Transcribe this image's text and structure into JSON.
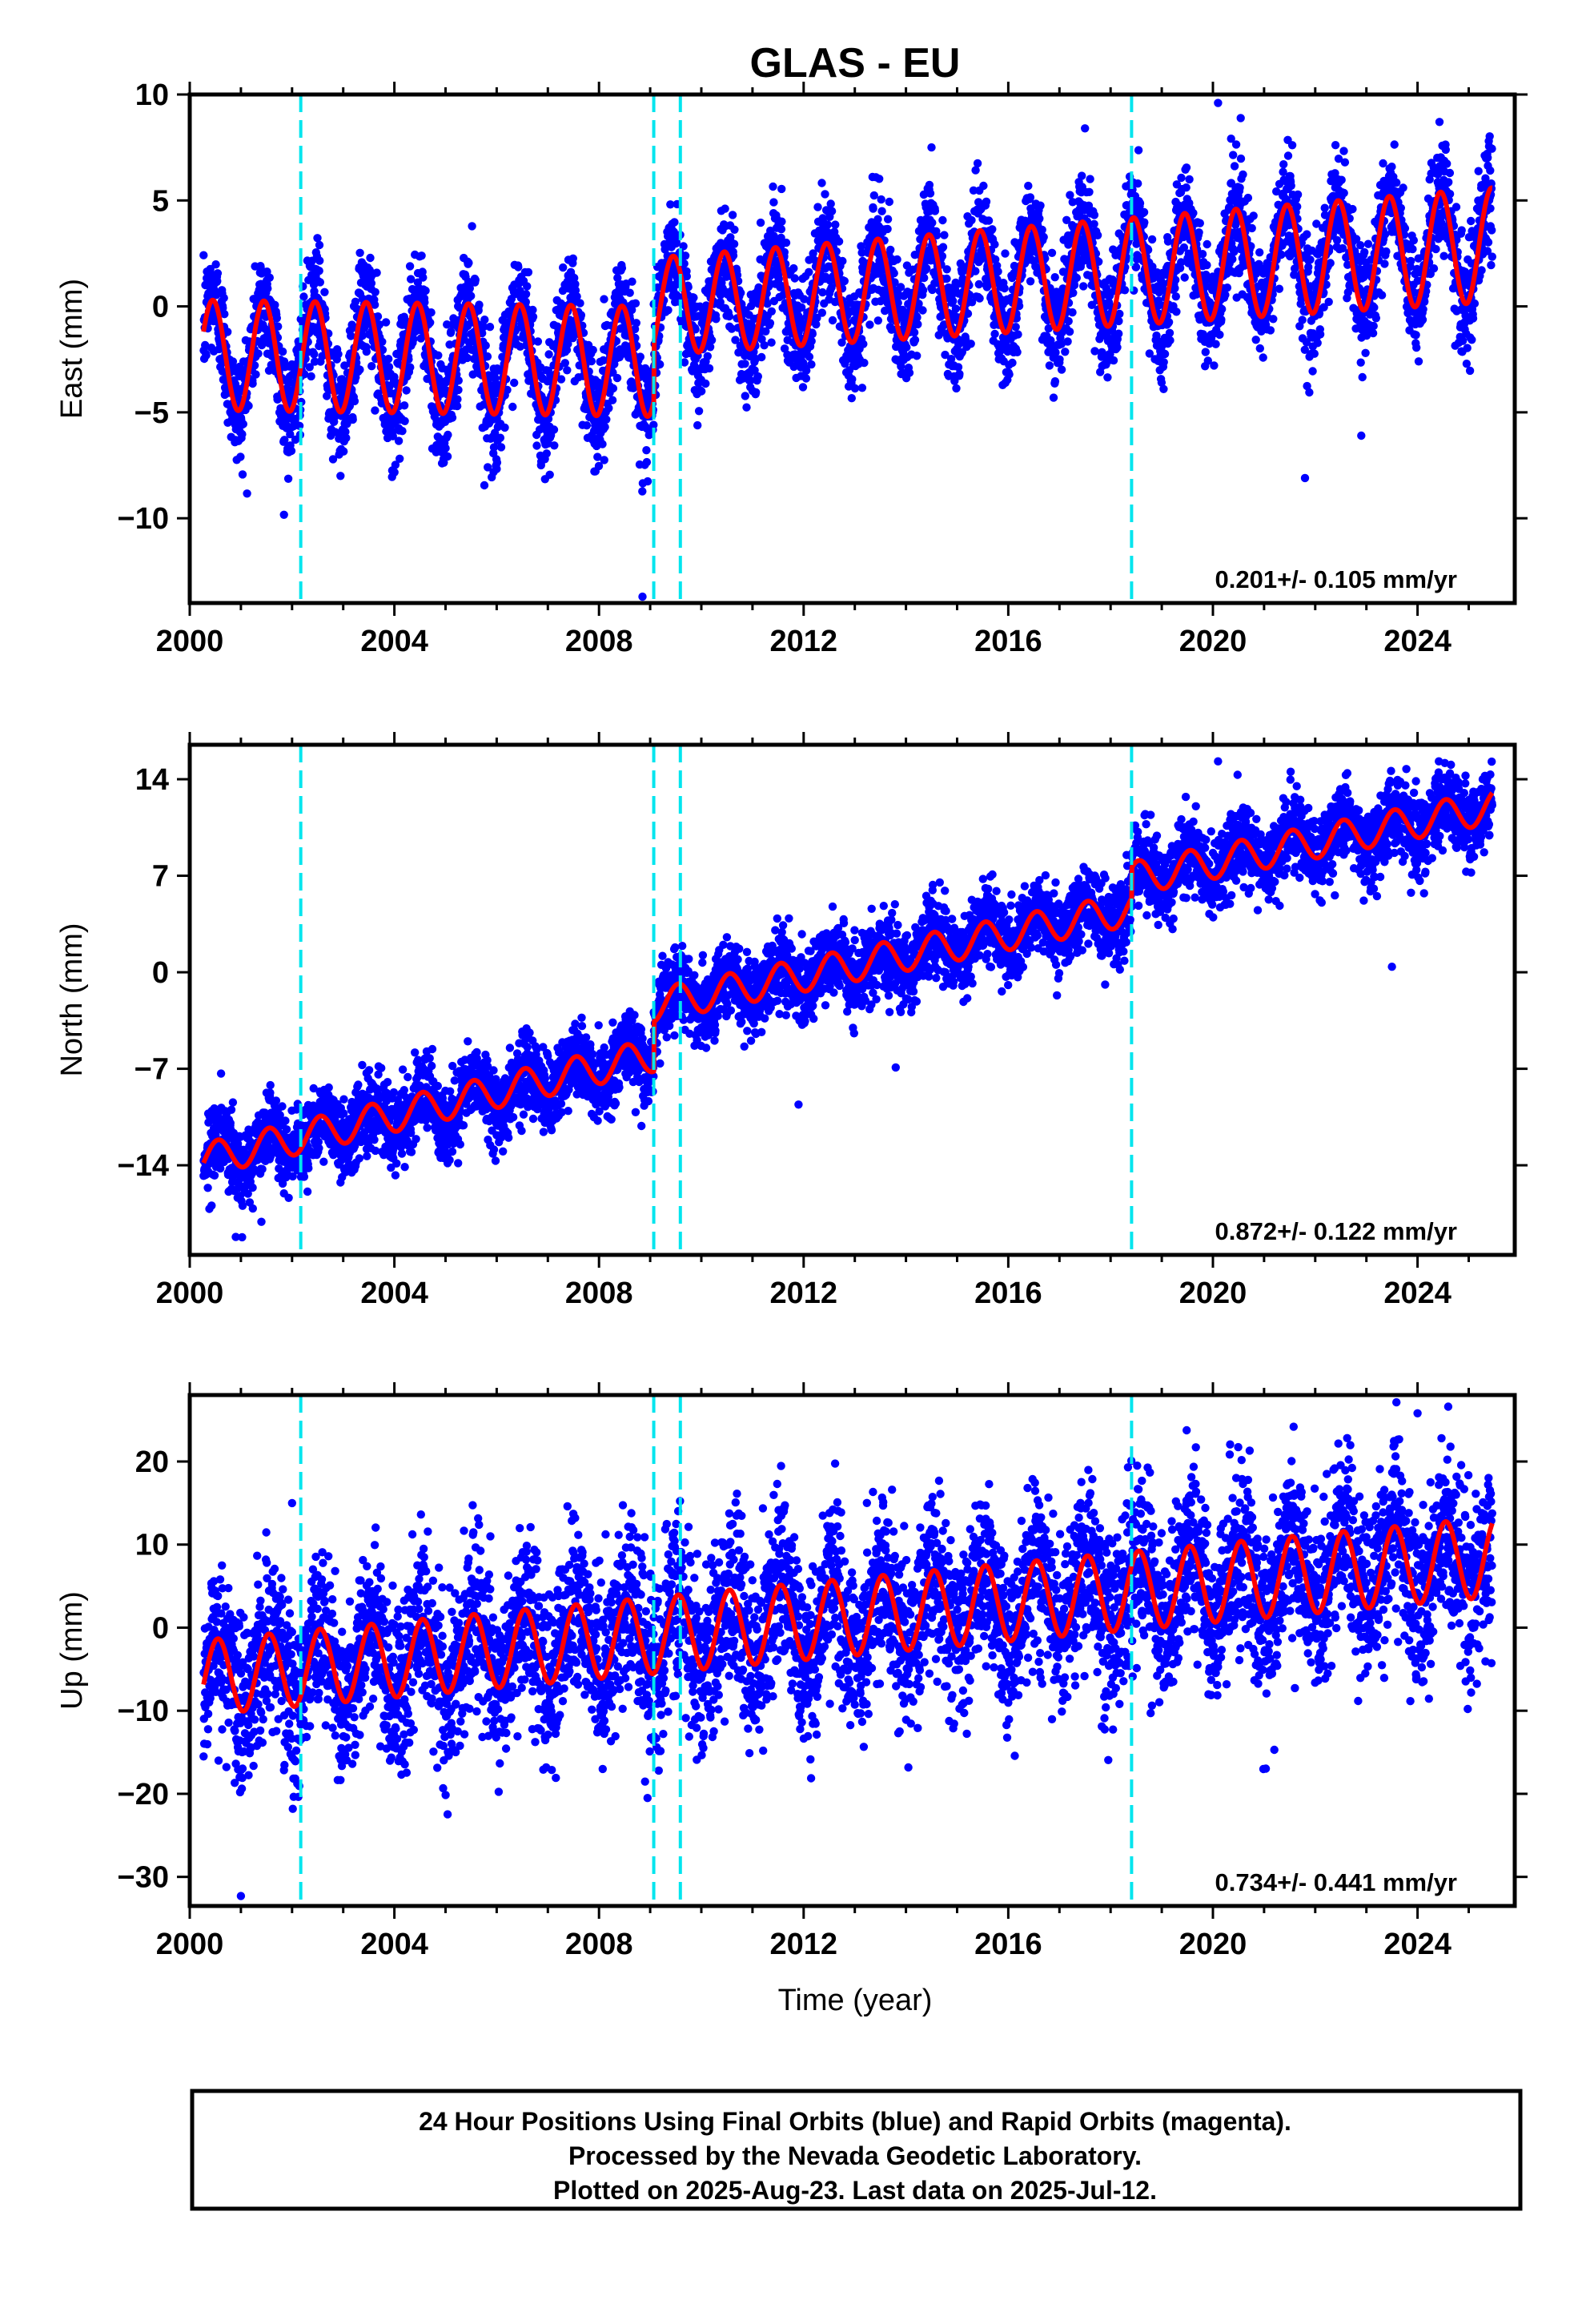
{
  "title": "GLAS - EU",
  "xlabel": "Time (year)",
  "caption": {
    "line1": "24 Hour Positions Using Final Orbits (blue) and Rapid Orbits (magenta).",
    "line2": "Processed by the Nevada Geodetic Laboratory.",
    "line3": "Plotted on 2025-Aug-23. Last data on 2025-Jul-12."
  },
  "colors": {
    "data_points": "#0000ff",
    "model_fit": "#ff0000",
    "equipment_change": "#00e5ee",
    "frame": "#000000"
  },
  "chart_data": [
    {
      "type": "scatter",
      "name": "east",
      "ylabel": "East (mm)",
      "rate_text": "0.201+/- 0.105 mm/yr",
      "xlim": [
        2000,
        2025.9
      ],
      "ylim": [
        -14,
        10
      ],
      "xticks": [
        2000,
        2004,
        2008,
        2012,
        2016,
        2020,
        2024
      ],
      "yticks": [
        10,
        5,
        0,
        -5,
        -10
      ],
      "events": [
        2002.17,
        2009.07,
        2009.59,
        2018.41
      ],
      "model": {
        "start": 2000.27,
        "end": 2025.46,
        "segments": [
          {
            "from": 2000.27,
            "to": 2009.07,
            "offset_start": -2.3,
            "offset_end": -2.6,
            "amp_start": 2.6,
            "amp_end": 2.6
          },
          {
            "from": 2009.07,
            "to": 2025.46,
            "offset_start": 0.0,
            "offset_end": 2.9,
            "amp_start": 2.3,
            "amp_end": 2.7
          }
        ],
        "phase_peak": 0.45
      },
      "scatter": {
        "sigma": 1.3,
        "outliers": [
          [
            2008.85,
            -13.7
          ],
          [
            2021.8,
            -8.1
          ],
          [
            2022.9,
            -6.1
          ],
          [
            2020.1,
            9.6
          ],
          [
            2014.5,
            7.5
          ],
          [
            2017.5,
            8.4
          ]
        ]
      }
    },
    {
      "type": "scatter",
      "name": "north",
      "ylabel": "North (mm)",
      "rate_text": "0.872+/- 0.122 mm/yr",
      "xlim": [
        2000,
        2025.9
      ],
      "ylim": [
        -20.5,
        16.5
      ],
      "xticks": [
        2000,
        2004,
        2008,
        2012,
        2016,
        2020,
        2024
      ],
      "yticks": [
        14,
        7,
        0,
        -7,
        -14
      ],
      "events": [
        2002.17,
        2009.07,
        2009.59,
        2018.41
      ],
      "model": {
        "start": 2000.27,
        "end": 2025.46,
        "segments": [
          {
            "from": 2000.27,
            "to": 2009.07,
            "offset_start": -13.6,
            "offset_end": -6.0,
            "amp_start": 1.2,
            "amp_end": 1.2
          },
          {
            "from": 2009.07,
            "to": 2018.41,
            "offset_start": -2.4,
            "offset_end": 4.6,
            "amp_start": 1.2,
            "amp_end": 1.2
          },
          {
            "from": 2018.41,
            "to": 2025.46,
            "offset_start": 6.8,
            "offset_end": 12.0,
            "amp_start": 1.2,
            "amp_end": 1.2
          }
        ],
        "phase_peak": 0.55
      },
      "scatter": {
        "sigma": 1.4,
        "outliers": [
          [
            2000.9,
            -19.2
          ],
          [
            2001.4,
            -18.1
          ],
          [
            2023.5,
            0.4
          ],
          [
            2013.8,
            -6.9
          ],
          [
            2011.9,
            -9.6
          ],
          [
            2020.1,
            15.3
          ]
        ]
      }
    },
    {
      "type": "scatter",
      "name": "up",
      "ylabel": "Up (mm)",
      "rate_text": "0.734+/- 0.441 mm/yr",
      "xlim": [
        2000,
        2025.9
      ],
      "ylim": [
        -33.5,
        28
      ],
      "xticks": [
        2000,
        2004,
        2008,
        2012,
        2016,
        2020,
        2024
      ],
      "yticks": [
        20,
        10,
        0,
        -10,
        -20,
        -30
      ],
      "events": [
        2002.17,
        2009.07,
        2009.59,
        2018.41
      ],
      "model": {
        "start": 2000.27,
        "end": 2025.46,
        "segments": [
          {
            "from": 2000.27,
            "to": 2025.46,
            "offset_start": -6.0,
            "offset_end": 8.5,
            "amp_start": 4.5,
            "amp_end": 4.8
          }
        ],
        "phase_peak": 0.55
      },
      "scatter": {
        "sigma": 5.2,
        "outliers": [
          [
            2001.0,
            -32.3
          ],
          [
            2024.6,
            26.6
          ],
          [
            2024.0,
            25.8
          ],
          [
            2021.2,
            -14.7
          ],
          [
            2002.0,
            15.0
          ]
        ]
      }
    }
  ]
}
